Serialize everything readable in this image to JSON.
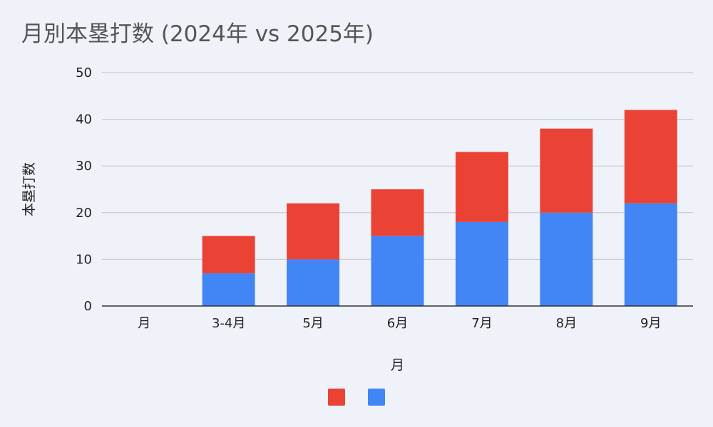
{
  "chart_data": {
    "type": "bar",
    "stacked": true,
    "title": "月別本塁打数 (2024年 vs 2025年)",
    "xlabel": "月",
    "ylabel": "本塁打数",
    "categories": [
      "月",
      "3-4月",
      "5月",
      "6月",
      "7月",
      "8月",
      "9月"
    ],
    "ylim": [
      0,
      50
    ],
    "yticks": [
      0,
      10,
      20,
      30,
      40,
      50
    ],
    "grid": true,
    "legend_position": "bottom",
    "series": [
      {
        "color": "#4285f4",
        "values": [
          0,
          7,
          10,
          15,
          18,
          20,
          22
        ]
      },
      {
        "color": "#ea4335",
        "values": [
          0,
          8,
          12,
          10,
          15,
          18,
          20
        ]
      }
    ],
    "legend_order": [
      1,
      0
    ]
  }
}
